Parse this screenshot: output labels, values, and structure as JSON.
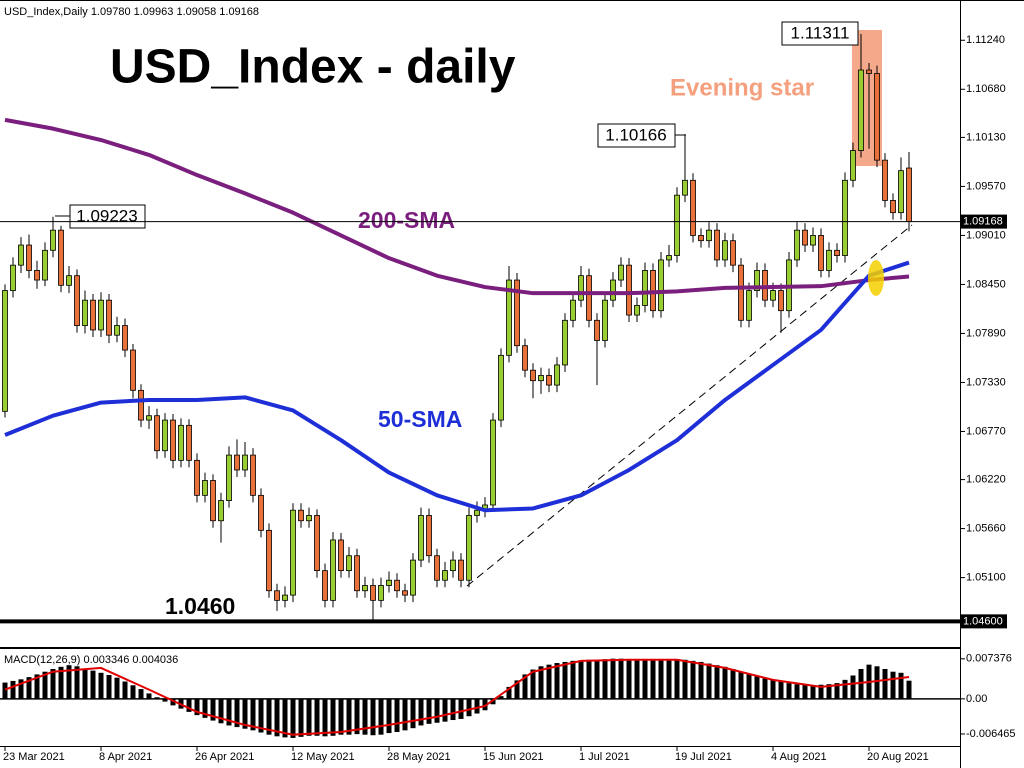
{
  "chart_data": [
    {
      "type": "candlestick",
      "title": "USD_Index - daily",
      "subtitle": "USD_Index,Daily  1.09780 1.09963 1.09058 1.09168",
      "categories": [
        "23 Mar 2021",
        null,
        null,
        null,
        null,
        null,
        null,
        null,
        null,
        null,
        null,
        null,
        "8 Apr 2021",
        null,
        null,
        null,
        null,
        null,
        null,
        null,
        null,
        null,
        null,
        null,
        "26 Apr 2021",
        null,
        null,
        null,
        null,
        null,
        null,
        null,
        null,
        null,
        null,
        null,
        "12 May 2021",
        null,
        null,
        null,
        null,
        null,
        null,
        null,
        null,
        null,
        null,
        null,
        "28 May 2021",
        null,
        null,
        null,
        null,
        null,
        null,
        null,
        null,
        null,
        null,
        null,
        "15 Jun 2021",
        null,
        null,
        null,
        null,
        null,
        null,
        null,
        null,
        null,
        null,
        null,
        "1 Jul 2021",
        null,
        null,
        null,
        null,
        null,
        null,
        null,
        null,
        null,
        null,
        null,
        "19 Jul 2021",
        null,
        null,
        null,
        null,
        null,
        null,
        null,
        null,
        null,
        null,
        null,
        "4 Aug 2021",
        null,
        null,
        null,
        null,
        null,
        null,
        null,
        null,
        null,
        null,
        null,
        "20 Aug 2021",
        null,
        null,
        null,
        null,
        null
      ],
      "candles": [
        [
          1.07,
          1.0845,
          1.0693,
          1.0838
        ],
        [
          1.0838,
          1.0876,
          1.083,
          1.0867
        ],
        [
          1.0867,
          1.0899,
          1.0858,
          1.089
        ],
        [
          1.089,
          1.0902,
          1.0852,
          1.0861
        ],
        [
          1.0861,
          1.0872,
          1.084,
          1.085
        ],
        [
          1.085,
          1.0893,
          1.0843,
          1.0884
        ],
        [
          1.0884,
          1.09223,
          1.0876,
          1.0907
        ],
        [
          1.0907,
          1.0912,
          1.0836,
          1.0844
        ],
        [
          1.0844,
          1.0866,
          1.0835,
          1.0855
        ],
        [
          1.0855,
          1.0862,
          1.079,
          1.0798
        ],
        [
          1.0798,
          1.0838,
          1.0789,
          1.0827
        ],
        [
          1.0827,
          1.0834,
          1.0785,
          1.0793
        ],
        [
          1.0793,
          1.0836,
          1.0785,
          1.0827
        ],
        [
          1.0827,
          1.0834,
          1.0778,
          1.0787
        ],
        [
          1.0787,
          1.0808,
          1.0779,
          1.0798
        ],
        [
          1.0798,
          1.0806,
          1.0762,
          1.077
        ],
        [
          1.077,
          1.0777,
          1.0715,
          1.0724
        ],
        [
          1.0724,
          1.0731,
          1.0682,
          1.069
        ],
        [
          1.069,
          1.0706,
          1.068,
          1.0695
        ],
        [
          1.0695,
          1.0703,
          1.0646,
          1.0655
        ],
        [
          1.0655,
          1.0698,
          1.0647,
          1.069
        ],
        [
          1.069,
          1.0697,
          1.0635,
          1.0644
        ],
        [
          1.0644,
          1.0692,
          1.0636,
          1.0684
        ],
        [
          1.0684,
          1.0691,
          1.0636,
          1.0644
        ],
        [
          1.0644,
          1.0652,
          1.0596,
          1.0604
        ],
        [
          1.0604,
          1.063,
          1.0596,
          1.0621
        ],
        [
          1.0621,
          1.0628,
          1.0567,
          1.0575
        ],
        [
          1.0575,
          1.0607,
          1.055,
          1.0598
        ],
        [
          1.0598,
          1.066,
          1.059,
          1.065
        ],
        [
          1.065,
          1.0668,
          1.0625,
          1.0633
        ],
        [
          1.0633,
          1.0665,
          1.0625,
          1.065
        ],
        [
          1.065,
          1.0658,
          1.0596,
          1.0604
        ],
        [
          1.0604,
          1.0612,
          1.0556,
          1.0564
        ],
        [
          1.0564,
          1.0572,
          1.0487,
          1.0495
        ],
        [
          1.0495,
          1.0503,
          1.0472,
          1.0484
        ],
        [
          1.0484,
          1.05,
          1.0476,
          1.049
        ],
        [
          1.049,
          1.0595,
          1.0482,
          1.0587
        ],
        [
          1.0587,
          1.0595,
          1.0567,
          1.0575
        ],
        [
          1.0575,
          1.059,
          1.0567,
          1.0581
        ],
        [
          1.0581,
          1.0588,
          1.051,
          1.0518
        ],
        [
          1.0518,
          1.0526,
          1.0476,
          1.0484
        ],
        [
          1.0484,
          1.0562,
          1.0476,
          1.0553
        ],
        [
          1.0553,
          1.0561,
          1.051,
          1.0518
        ],
        [
          1.0518,
          1.0545,
          1.051,
          1.0535
        ],
        [
          1.0535,
          1.0543,
          1.0487,
          1.0495
        ],
        [
          1.0495,
          1.0511,
          1.0487,
          1.0501
        ],
        [
          1.0501,
          1.0509,
          1.046,
          1.0484
        ],
        [
          1.0484,
          1.051,
          1.0476,
          1.0501
        ],
        [
          1.0501,
          1.0517,
          1.0493,
          1.0507
        ],
        [
          1.0507,
          1.0515,
          1.0487,
          1.0495
        ],
        [
          1.0495,
          1.0503,
          1.0482,
          1.049
        ],
        [
          1.049,
          1.0538,
          1.0482,
          1.053
        ],
        [
          1.053,
          1.059,
          1.0522,
          1.0581
        ],
        [
          1.0581,
          1.0589,
          1.0527,
          1.0535
        ],
        [
          1.0535,
          1.0543,
          1.0499,
          1.0507
        ],
        [
          1.0507,
          1.0528,
          1.0499,
          1.0518
        ],
        [
          1.0518,
          1.054,
          1.051,
          1.053
        ],
        [
          1.053,
          1.0538,
          1.0499,
          1.0507
        ],
        [
          1.0507,
          1.059,
          1.0499,
          1.0581
        ],
        [
          1.0581,
          1.0597,
          1.0573,
          1.0587
        ],
        [
          1.0587,
          1.0602,
          1.0579,
          1.0593
        ],
        [
          1.0593,
          1.0698,
          1.0585,
          1.069
        ],
        [
          1.069,
          1.0772,
          1.0682,
          1.0764
        ],
        [
          1.0764,
          1.0866,
          1.0756,
          1.085
        ],
        [
          1.085,
          1.0858,
          1.0767,
          1.0775
        ],
        [
          1.0775,
          1.0783,
          1.0739,
          1.0747
        ],
        [
          1.0747,
          1.0755,
          1.0715,
          1.0735
        ],
        [
          1.0735,
          1.075,
          1.072,
          1.0741
        ],
        [
          1.0741,
          1.0749,
          1.0722,
          1.073
        ],
        [
          1.073,
          1.0762,
          1.0722,
          1.0753
        ],
        [
          1.0753,
          1.0812,
          1.0745,
          1.0804
        ],
        [
          1.0804,
          1.0836,
          1.0796,
          1.0827
        ],
        [
          1.0827,
          1.0866,
          1.0819,
          1.0855
        ],
        [
          1.0855,
          1.0863,
          1.0796,
          1.0804
        ],
        [
          1.0804,
          1.0812,
          1.073,
          1.0781
        ],
        [
          1.0781,
          1.0836,
          1.0773,
          1.0827
        ],
        [
          1.0827,
          1.0859,
          1.0819,
          1.085
        ],
        [
          1.085,
          1.0876,
          1.0842,
          1.0867
        ],
        [
          1.0867,
          1.0875,
          1.0802,
          1.081
        ],
        [
          1.081,
          1.083,
          1.0802,
          1.0821
        ],
        [
          1.0821,
          1.087,
          1.0813,
          1.0861
        ],
        [
          1.0861,
          1.0869,
          1.0807,
          1.0815
        ],
        [
          1.0815,
          1.0882,
          1.0807,
          1.0873
        ],
        [
          1.0873,
          1.089,
          1.0865,
          1.0878
        ],
        [
          1.0878,
          1.0956,
          1.087,
          1.0947
        ],
        [
          1.0947,
          1.10166,
          1.0939,
          1.0964
        ],
        [
          1.0964,
          1.0972,
          1.0893,
          1.0901
        ],
        [
          1.0901,
          1.0909,
          1.0887,
          1.0895
        ],
        [
          1.0895,
          1.0916,
          1.0887,
          1.0907
        ],
        [
          1.0907,
          1.0915,
          1.0865,
          1.0873
        ],
        [
          1.0873,
          1.0904,
          1.0865,
          1.0895
        ],
        [
          1.0895,
          1.0903,
          1.0859,
          1.0867
        ],
        [
          1.0867,
          1.0875,
          1.0796,
          1.0804
        ],
        [
          1.0804,
          1.0847,
          1.0796,
          1.0838
        ],
        [
          1.0838,
          1.087,
          1.083,
          1.0861
        ],
        [
          1.0861,
          1.0869,
          1.0819,
          1.0827
        ],
        [
          1.0827,
          1.0847,
          1.0819,
          1.0838
        ],
        [
          1.0838,
          1.0846,
          1.079,
          1.0815
        ],
        [
          1.0815,
          1.0882,
          1.0807,
          1.0873
        ],
        [
          1.0873,
          1.0916,
          1.0865,
          1.0907
        ],
        [
          1.0907,
          1.0915,
          1.0882,
          1.089
        ],
        [
          1.089,
          1.091,
          1.0882,
          1.0901
        ],
        [
          1.0901,
          1.0909,
          1.0853,
          1.0861
        ],
        [
          1.0861,
          1.0893,
          1.0853,
          1.0884
        ],
        [
          1.0884,
          1.0892,
          1.087,
          1.0878
        ],
        [
          1.0878,
          1.0973,
          1.087,
          1.0964
        ],
        [
          1.0964,
          1.1007,
          1.0956,
          1.0998
        ],
        [
          1.0998,
          1.11311,
          1.099,
          1.109
        ],
        [
          1.109,
          1.1098,
          1.1,
          1.1086
        ],
        [
          1.1086,
          1.1095,
          1.0979,
          1.0987
        ],
        [
          1.0987,
          1.0995,
          1.0933,
          1.0941
        ],
        [
          1.0941,
          1.0949,
          1.0919,
          1.0927
        ],
        [
          1.0927,
          1.099,
          1.0919,
          1.0975
        ],
        [
          1.0978,
          1.09963,
          1.09058,
          1.09168
        ]
      ],
      "up_color": "#9ACD32",
      "down_color": "#E8703A",
      "series": [
        {
          "name": "200-SMA",
          "color": "#7B1F7F",
          "x": [
            0,
            6,
            12,
            18,
            24,
            30,
            36,
            42,
            48,
            54,
            60,
            66,
            72,
            78,
            84,
            90,
            96,
            102,
            108,
            113
          ],
          "values": [
            1.1033,
            1.1023,
            1.101,
            1.0993,
            1.097,
            1.0949,
            1.0927,
            1.0901,
            1.0875,
            1.0855,
            1.0842,
            1.0835,
            1.0835,
            1.0835,
            1.0837,
            1.0841,
            1.0842,
            1.0843,
            1.085,
            1.0854
          ]
        },
        {
          "name": "50-SMA",
          "color": "#1E2FD8",
          "x": [
            0,
            6,
            12,
            18,
            24,
            30,
            36,
            42,
            48,
            54,
            60,
            66,
            72,
            78,
            84,
            90,
            96,
            102,
            108,
            113
          ],
          "values": [
            1.0673,
            1.0695,
            1.071,
            1.0713,
            1.0713,
            1.0716,
            1.0701,
            1.0667,
            1.063,
            1.0604,
            1.0587,
            1.0589,
            1.0604,
            1.0633,
            1.0667,
            1.0713,
            1.0753,
            1.0793,
            1.0855,
            1.087
          ]
        }
      ],
      "ylim": [
        1.0433,
        1.117
      ],
      "yticks": [
        {
          "value": 1.1124,
          "label": "1.11240"
        },
        {
          "value": 1.1068,
          "label": "1.10680"
        },
        {
          "value": 1.1013,
          "label": "1.10130"
        },
        {
          "value": 1.0957,
          "label": "1.09570"
        },
        {
          "value": 1.0901,
          "label": "1.09010"
        },
        {
          "value": 1.0845,
          "label": "1.08450"
        },
        {
          "value": 1.0789,
          "label": "1.07890"
        },
        {
          "value": 1.0733,
          "label": "1.07330"
        },
        {
          "value": 1.0677,
          "label": "1.06770"
        },
        {
          "value": 1.0622,
          "label": "1.06220"
        },
        {
          "value": 1.0566,
          "label": "1.05660"
        },
        {
          "value": 1.051,
          "label": "1.05100"
        }
      ],
      "current_price": {
        "value": 1.09168,
        "label": "1.09168"
      },
      "support_level": {
        "value": 1.046,
        "label": "1.04600"
      },
      "support_label": "1.0460",
      "pattern_label": "Evening star",
      "callouts": [
        "1.09223",
        "1.10166",
        "1.11311"
      ]
    },
    {
      "type": "macd",
      "label": "MACD(12,26,9) 0.003346 0.004036",
      "color": "#000000",
      "values": [
        0.003,
        0.0033,
        0.0036,
        0.004,
        0.0045,
        0.005,
        0.0055,
        0.0059,
        0.0062,
        0.006,
        0.0056,
        0.0052,
        0.0048,
        0.0044,
        0.0039,
        0.0032,
        0.0025,
        0.0018,
        0.001,
        0.0003,
        -0.0005,
        -0.0012,
        -0.0018,
        -0.0024,
        -0.003,
        -0.0035,
        -0.004,
        -0.0045,
        -0.0049,
        -0.0052,
        -0.0055,
        -0.0058,
        -0.0062,
        -0.0066,
        -0.0069,
        -0.0071,
        -0.0072,
        -0.007,
        -0.0068,
        -0.0068,
        -0.0069,
        -0.0068,
        -0.0066,
        -0.0066,
        -0.0065,
        -0.0066,
        -0.0067,
        -0.0066,
        -0.0063,
        -0.0061,
        -0.0058,
        -0.0054,
        -0.0049,
        -0.0046,
        -0.0044,
        -0.0042,
        -0.0039,
        -0.0037,
        -0.0032,
        -0.0027,
        -0.0021,
        -0.001,
        0.0005,
        0.0022,
        0.0034,
        0.0045,
        0.0054,
        0.006,
        0.0063,
        0.0066,
        0.0068,
        0.007,
        0.0071,
        0.0072,
        0.0072,
        0.0073,
        0.0074,
        0.0074,
        0.0073,
        0.0072,
        0.0072,
        0.0071,
        0.0071,
        0.0073,
        0.0073,
        0.0072,
        0.007,
        0.0068,
        0.0065,
        0.0062,
        0.0059,
        0.0055,
        0.005,
        0.0046,
        0.0042,
        0.0038,
        0.0035,
        0.0032,
        0.0029,
        0.0027,
        0.0026,
        0.0025,
        0.0026,
        0.0027,
        0.0029,
        0.0035,
        0.0043,
        0.0055,
        0.0063,
        0.006,
        0.0055,
        0.005,
        0.0048,
        0.003346
      ],
      "signal": {
        "color": "#E00000",
        "x": [
          0,
          6,
          12,
          18,
          24,
          30,
          36,
          42,
          48,
          54,
          60,
          66,
          72,
          78,
          84,
          90,
          96,
          102,
          108,
          113
        ],
        "values": [
          0.0017,
          0.005,
          0.0057,
          0.0017,
          -0.0024,
          -0.0048,
          -0.0066,
          -0.0061,
          -0.0048,
          -0.0033,
          -0.0013,
          0.005,
          0.007,
          0.0072,
          0.0072,
          0.0057,
          0.0035,
          0.0022,
          0.0031,
          0.004036
        ]
      },
      "ylim": [
        -0.0085,
        0.009
      ],
      "yticks": [
        0.007376,
        {
          "value": 0,
          "label": "0.00"
        },
        -0.006465
      ]
    }
  ]
}
